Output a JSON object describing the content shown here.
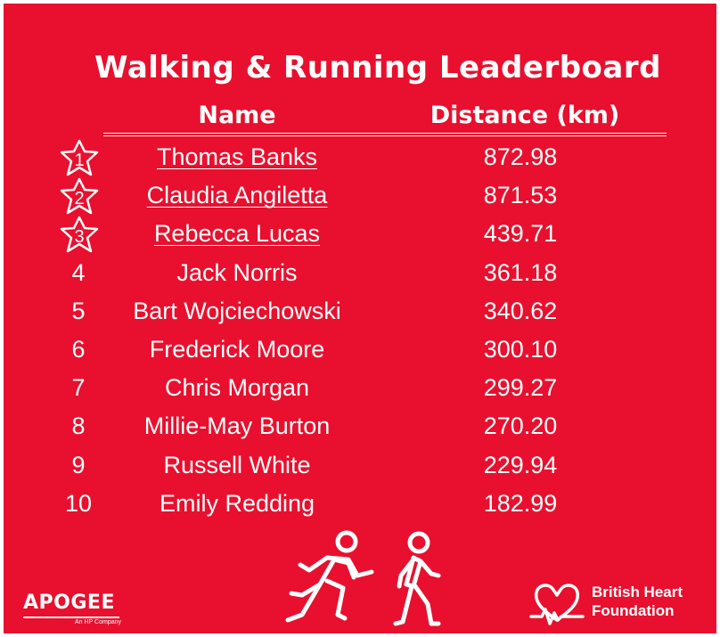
{
  "title": "Walking & Running Leaderboard",
  "headers": {
    "name": "Name",
    "distance": "Distance (km)"
  },
  "rows": [
    {
      "rank": "1",
      "name": "Thomas Banks",
      "distance": "872.98",
      "medal": true
    },
    {
      "rank": "2",
      "name": "Claudia Angiletta",
      "distance": "871.53",
      "medal": true
    },
    {
      "rank": "3",
      "name": "Rebecca Lucas",
      "distance": "439.71",
      "medal": true
    },
    {
      "rank": "4",
      "name": "Jack Norris",
      "distance": "361.18",
      "medal": false
    },
    {
      "rank": "5",
      "name": "Bart Wojciechowski",
      "distance": "340.62",
      "medal": false
    },
    {
      "rank": "6",
      "name": "Frederick Moore",
      "distance": "300.10",
      "medal": false
    },
    {
      "rank": "7",
      "name": "Chris Morgan",
      "distance": "299.27",
      "medal": false
    },
    {
      "rank": "8",
      "name": "Millie-May Burton",
      "distance": "270.20",
      "medal": false
    },
    {
      "rank": "9",
      "name": "Russell White",
      "distance": "229.94",
      "medal": false
    },
    {
      "rank": "10",
      "name": "Emily Redding",
      "distance": "182.99",
      "medal": false
    }
  ],
  "logos": {
    "apogee": {
      "name": "APOGEE",
      "tagline": "An HP Company"
    },
    "bhf": {
      "line1": "British Heart",
      "line2": "Foundation"
    }
  },
  "icons": {
    "runner": "running-person-icon",
    "walker": "walking-person-icon",
    "medal": "star-badge-icon",
    "bhf": "heart-pulse-icon"
  },
  "colors": {
    "background": "#e8102e",
    "text": "#ffffff"
  }
}
